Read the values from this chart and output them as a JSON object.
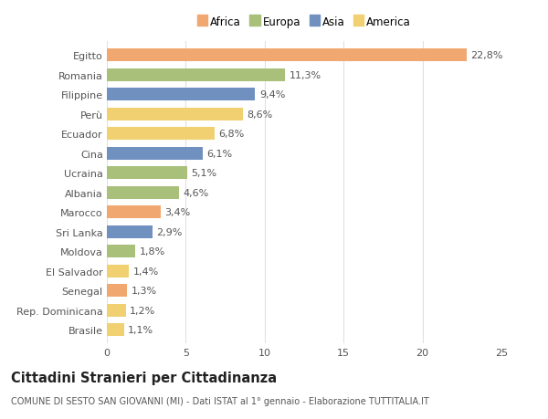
{
  "countries": [
    "Egitto",
    "Romania",
    "Filippine",
    "Perù",
    "Ecuador",
    "Cina",
    "Ucraina",
    "Albania",
    "Marocco",
    "Sri Lanka",
    "Moldova",
    "El Salvador",
    "Senegal",
    "Rep. Dominicana",
    "Brasile"
  ],
  "values": [
    22.8,
    11.3,
    9.4,
    8.6,
    6.8,
    6.1,
    5.1,
    4.6,
    3.4,
    2.9,
    1.8,
    1.4,
    1.3,
    1.2,
    1.1
  ],
  "labels": [
    "22,8%",
    "11,3%",
    "9,4%",
    "8,6%",
    "6,8%",
    "6,1%",
    "5,1%",
    "4,6%",
    "3,4%",
    "2,9%",
    "1,8%",
    "1,4%",
    "1,3%",
    "1,2%",
    "1,1%"
  ],
  "continents": [
    "Africa",
    "Europa",
    "Asia",
    "America",
    "America",
    "Asia",
    "Europa",
    "Europa",
    "Africa",
    "Asia",
    "Europa",
    "America",
    "Africa",
    "America",
    "America"
  ],
  "colors": {
    "Africa": "#F0A870",
    "Europa": "#A8C07A",
    "Asia": "#7090C0",
    "America": "#F0D070"
  },
  "legend_order": [
    "Africa",
    "Europa",
    "Asia",
    "America"
  ],
  "xlim": [
    0,
    25
  ],
  "xticks": [
    0,
    5,
    10,
    15,
    20,
    25
  ],
  "title": "Cittadini Stranieri per Cittadinanza",
  "subtitle": "COMUNE DI SESTO SAN GIOVANNI (MI) - Dati ISTAT al 1° gennaio - Elaborazione TUTTITALIA.IT",
  "background_color": "#ffffff",
  "bar_height": 0.65,
  "grid_color": "#e0e0e0",
  "text_color": "#555555",
  "label_fontsize": 8.0,
  "tick_fontsize": 8.0,
  "title_fontsize": 10.5,
  "subtitle_fontsize": 7.0
}
